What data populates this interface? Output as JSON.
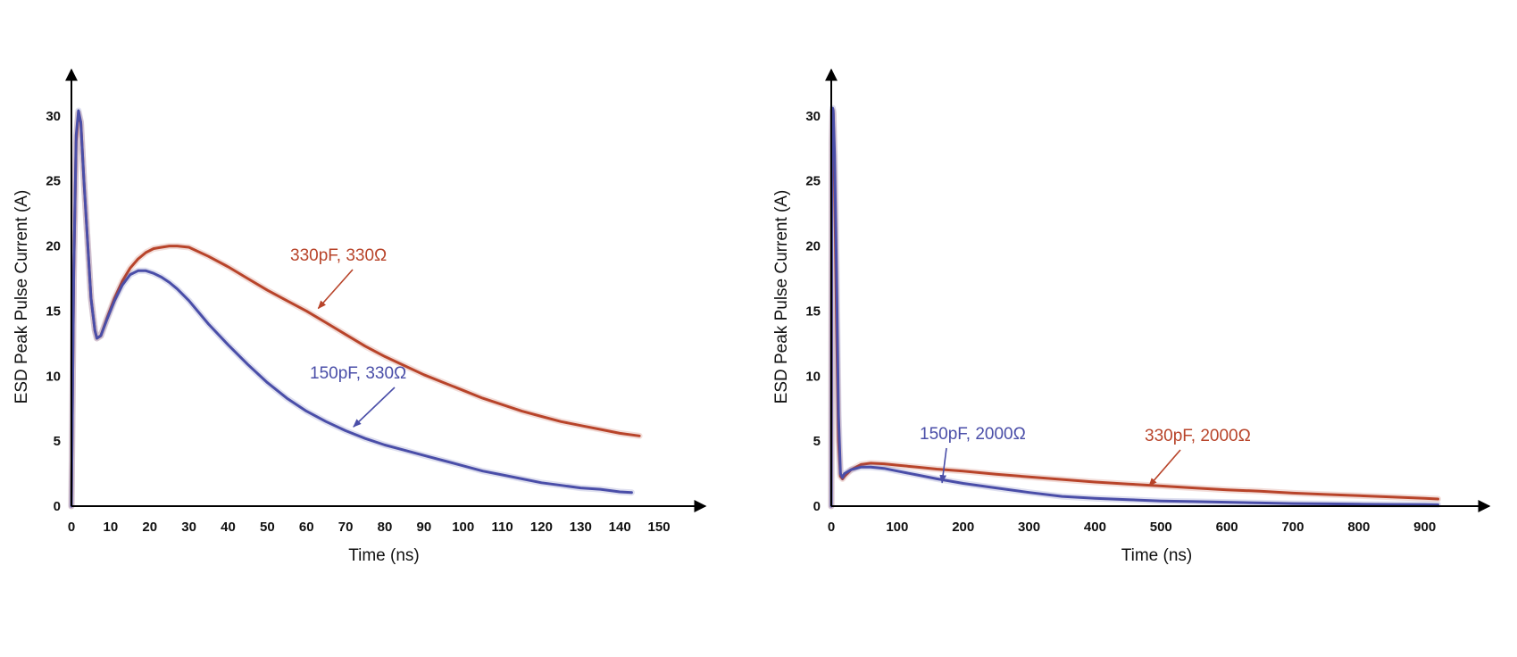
{
  "colors": {
    "series_330": "#b8442a",
    "series_150": "#4a4ea8",
    "axis": "#000000"
  },
  "chart_data": [
    {
      "type": "line",
      "title": "",
      "xlabel": "Time (ns)",
      "ylabel": "ESD Peak Pulse Current (A)",
      "xlim": [
        0,
        155
      ],
      "ylim": [
        0,
        31.5
      ],
      "xticks": [
        0,
        10,
        20,
        30,
        40,
        50,
        60,
        70,
        80,
        90,
        100,
        110,
        120,
        130,
        140,
        150
      ],
      "yticks": [
        0,
        5,
        10,
        15,
        20,
        25,
        30
      ],
      "grid": false,
      "series": [
        {
          "name": "330pF, 330Ω",
          "color_key": "series_330",
          "x": [
            0,
            0.6,
            1.2,
            1.8,
            2.4,
            3.2,
            4,
            5,
            6,
            6.5,
            7.5,
            9,
            11,
            13,
            15,
            17,
            19,
            21,
            23,
            25,
            27,
            30,
            35,
            40,
            45,
            50,
            55,
            60,
            65,
            70,
            75,
            80,
            85,
            90,
            95,
            100,
            105,
            110,
            115,
            120,
            125,
            130,
            135,
            140,
            145
          ],
          "values": [
            0,
            18,
            28,
            30.2,
            29.5,
            25,
            21,
            16,
            13.5,
            12.9,
            13.1,
            14.4,
            16,
            17.3,
            18.3,
            19,
            19.5,
            19.8,
            19.9,
            20,
            20,
            19.9,
            19.2,
            18.4,
            17.5,
            16.6,
            15.8,
            15,
            14.1,
            13.2,
            12.3,
            11.5,
            10.8,
            10.1,
            9.5,
            8.9,
            8.3,
            7.8,
            7.3,
            6.9,
            6.5,
            6.2,
            5.9,
            5.6,
            5.4
          ]
        },
        {
          "name": "150pF, 330Ω",
          "color_key": "series_150",
          "x": [
            0,
            0.6,
            1.2,
            1.8,
            2.4,
            3.2,
            4,
            5,
            6,
            6.5,
            7.5,
            9,
            11,
            13,
            15,
            17,
            19,
            21,
            23,
            25,
            27,
            30,
            35,
            40,
            45,
            50,
            55,
            60,
            65,
            70,
            75,
            80,
            85,
            90,
            95,
            100,
            105,
            110,
            115,
            120,
            125,
            130,
            135,
            140,
            143
          ],
          "values": [
            0,
            18,
            28.5,
            30.4,
            29.5,
            25,
            21,
            16,
            13.5,
            12.9,
            13.1,
            14.3,
            15.8,
            17,
            17.8,
            18.1,
            18.1,
            17.9,
            17.6,
            17.2,
            16.7,
            15.8,
            14,
            12.4,
            10.9,
            9.5,
            8.3,
            7.3,
            6.5,
            5.8,
            5.2,
            4.7,
            4.3,
            3.9,
            3.5,
            3.1,
            2.7,
            2.4,
            2.1,
            1.8,
            1.6,
            1.4,
            1.3,
            1.1,
            1.05
          ]
        }
      ],
      "annotations": [
        {
          "text": "330pF, 330Ω",
          "color_key": "series_330",
          "target": [
            63,
            15.2
          ]
        },
        {
          "text": "150pF, 330Ω",
          "color_key": "series_150",
          "target": [
            72,
            6.1
          ]
        }
      ]
    },
    {
      "type": "line",
      "title": "",
      "xlabel": "Time (ns)",
      "ylabel": "ESD Peak Pulse Current (A)",
      "xlim": [
        0,
        960
      ],
      "ylim": [
        0,
        31.5
      ],
      "xticks": [
        0,
        100,
        200,
        300,
        400,
        500,
        600,
        700,
        800,
        900
      ],
      "yticks": [
        0,
        5,
        10,
        15,
        20,
        25,
        30
      ],
      "grid": false,
      "series": [
        {
          "name": "330pF, 2000Ω",
          "color_key": "series_330",
          "x": [
            0,
            1,
            2,
            3,
            5,
            8,
            11,
            14,
            17,
            20,
            30,
            45,
            60,
            80,
            100,
            130,
            160,
            200,
            250,
            300,
            350,
            400,
            450,
            500,
            550,
            600,
            650,
            700,
            750,
            800,
            850,
            900,
            920
          ],
          "values": [
            0,
            28,
            30.4,
            30.2,
            25,
            14,
            5,
            2.3,
            2.1,
            2.3,
            2.8,
            3.2,
            3.3,
            3.25,
            3.15,
            3.0,
            2.85,
            2.7,
            2.45,
            2.25,
            2.05,
            1.85,
            1.7,
            1.55,
            1.4,
            1.25,
            1.15,
            1.0,
            0.9,
            0.8,
            0.7,
            0.6,
            0.55
          ]
        },
        {
          "name": "150pF, 2000Ω",
          "color_key": "series_150",
          "x": [
            0,
            1,
            2,
            3,
            5,
            8,
            11,
            14,
            17,
            20,
            30,
            45,
            60,
            80,
            100,
            130,
            160,
            200,
            250,
            300,
            350,
            400,
            450,
            500,
            550,
            600,
            650,
            700,
            750,
            800,
            850,
            900,
            920
          ],
          "values": [
            0,
            28,
            30.6,
            30.4,
            27,
            18,
            7,
            2.5,
            2.2,
            2.5,
            2.8,
            3.0,
            3.0,
            2.9,
            2.7,
            2.4,
            2.1,
            1.75,
            1.4,
            1.05,
            0.75,
            0.6,
            0.5,
            0.4,
            0.35,
            0.3,
            0.25,
            0.2,
            0.18,
            0.15,
            0.13,
            0.12,
            0.1
          ]
        }
      ],
      "annotations": [
        {
          "text": "150pF, 2000Ω",
          "color_key": "series_150",
          "target": [
            168,
            1.8
          ]
        },
        {
          "text": "330pF, 2000Ω",
          "color_key": "series_330",
          "target": [
            482,
            1.55
          ]
        }
      ]
    }
  ]
}
